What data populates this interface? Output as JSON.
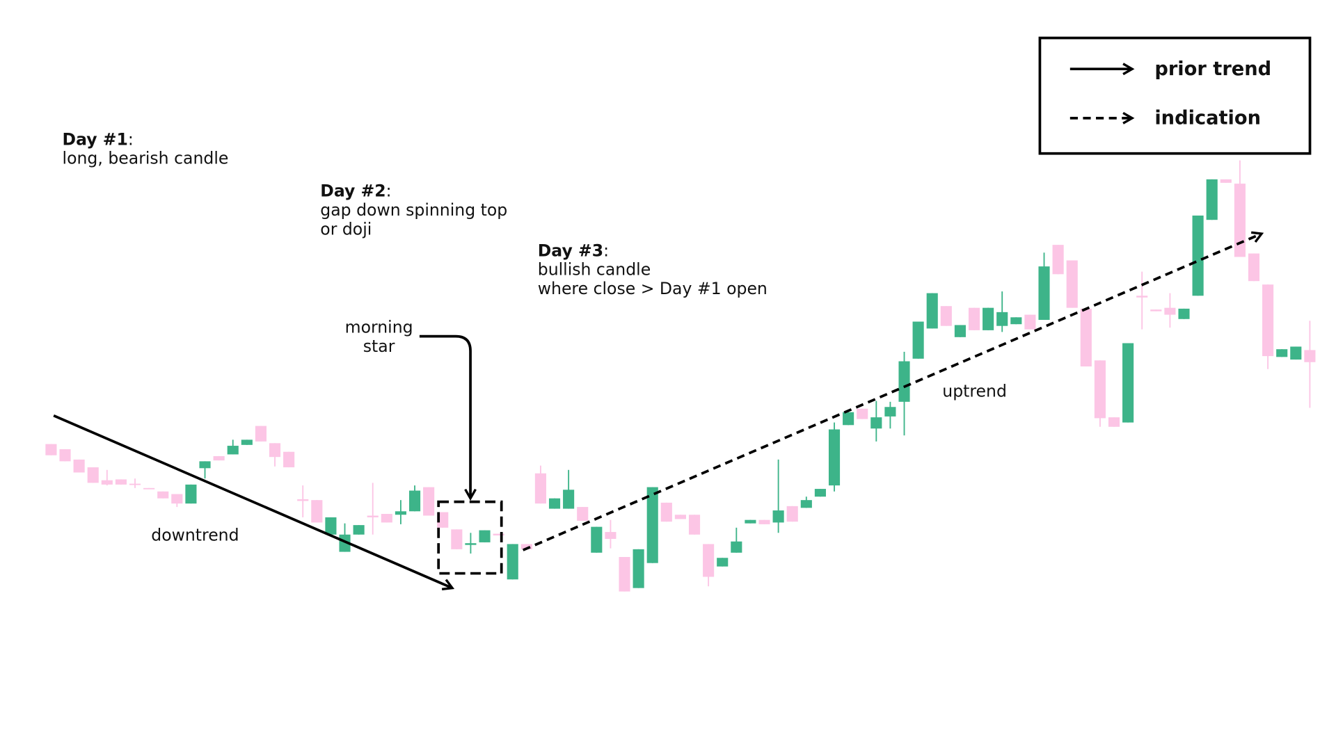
{
  "chart_data": {
    "type": "candlestick",
    "up_color": "#3db489",
    "down_color": "#fcc5e5",
    "open": [
      185,
      179,
      167,
      158,
      143,
      144,
      139,
      134,
      130,
      127,
      116,
      157,
      171,
      173,
      184,
      206,
      186,
      176,
      121,
      120,
      80,
      60,
      80,
      102,
      104,
      103,
      107,
      135,
      106,
      86,
      68,
      71,
      81,
      28,
      69,
      151,
      110,
      110,
      112,
      59,
      83,
      54,
      18,
      47,
      117,
      103,
      103,
      69,
      43,
      59,
      93,
      97,
      94,
      113,
      111,
      124,
      137,
      207,
      226,
      203,
      217,
      234,
      284,
      319,
      345,
      309,
      343,
      317,
      322,
      324,
      335,
      329,
      416,
      398,
      342,
      282,
      216,
      210,
      357,
      341,
      343,
      330,
      357,
      445,
      492,
      487,
      406,
      370,
      286,
      283,
      294
    ],
    "high": [
      185,
      179,
      167,
      158,
      155,
      144,
      145,
      134,
      130,
      127,
      138,
      165,
      171,
      190,
      190,
      206,
      186,
      176,
      137,
      120,
      100,
      93,
      91,
      140,
      104,
      120,
      137,
      135,
      106,
      86,
      82,
      85,
      81,
      69,
      69,
      160,
      122,
      155,
      112,
      89,
      97,
      54,
      63,
      135,
      117,
      103,
      103,
      69,
      53,
      88,
      97,
      97,
      167,
      113,
      124,
      133,
      210,
      222,
      226,
      235,
      234,
      292,
      327,
      360,
      345,
      323,
      343,
      343,
      362,
      332,
      335,
      407,
      416,
      398,
      342,
      282,
      216,
      302,
      385,
      341,
      360,
      342,
      450,
      492,
      492,
      514,
      406,
      370,
      295,
      298,
      328
    ],
    "low": [
      172,
      165,
      152,
      140,
      137,
      138,
      134,
      133,
      122,
      112,
      116,
      145,
      166,
      173,
      184,
      188,
      159,
      158,
      100,
      94,
      80,
      60,
      80,
      80,
      94,
      92,
      107,
      102,
      88,
      63,
      58,
      71,
      79,
      28,
      63,
      116,
      110,
      110,
      96,
      59,
      64,
      14,
      18,
      47,
      95,
      98,
      80,
      20,
      43,
      59,
      93,
      92,
      82,
      95,
      111,
      124,
      130,
      207,
      214,
      188,
      203,
      195,
      284,
      319,
      322,
      309,
      317,
      317,
      315,
      324,
      318,
      329,
      382,
      343,
      275,
      205,
      205,
      210,
      318,
      339,
      320,
      330,
      357,
      445,
      488,
      402,
      374,
      272,
      286,
      283,
      227
    ],
    "close": [
      172,
      165,
      152,
      140,
      138,
      138,
      138,
      133,
      122,
      116,
      138,
      165,
      166,
      183,
      190,
      188,
      170,
      158,
      119,
      94,
      100,
      80,
      91,
      100,
      94,
      107,
      131,
      102,
      88,
      63,
      70,
      85,
      79,
      69,
      63,
      116,
      122,
      132,
      96,
      89,
      75,
      14,
      63,
      135,
      95,
      98,
      80,
      31,
      53,
      72,
      97,
      92,
      108,
      95,
      120,
      133,
      202,
      222,
      214,
      216,
      228,
      281,
      327,
      360,
      322,
      323,
      317,
      343,
      338,
      332,
      318,
      391,
      382,
      343,
      275,
      215,
      205,
      302,
      355,
      339,
      335,
      342,
      450,
      492,
      488,
      402,
      374,
      287,
      295,
      298,
      280
    ],
    "annotations": [
      {
        "label": "Day #1",
        "delimiter": ":",
        "lines": [
          "long, bearish candle"
        ]
      },
      {
        "label": "Day #2",
        "delimiter": ":",
        "lines": [
          "gap down spinning top",
          "or doji"
        ]
      },
      {
        "label": "Day #3",
        "delimiter": ":",
        "lines": [
          "bullish candle",
          "where close > Day #1 open"
        ]
      }
    ],
    "pattern_label": [
      "morning",
      "star"
    ],
    "trend_labels": [
      "downtrend",
      "uptrend"
    ],
    "legend": [
      {
        "label": "prior trend",
        "style": "solid"
      },
      {
        "label": "indication",
        "style": "dashed"
      }
    ]
  }
}
